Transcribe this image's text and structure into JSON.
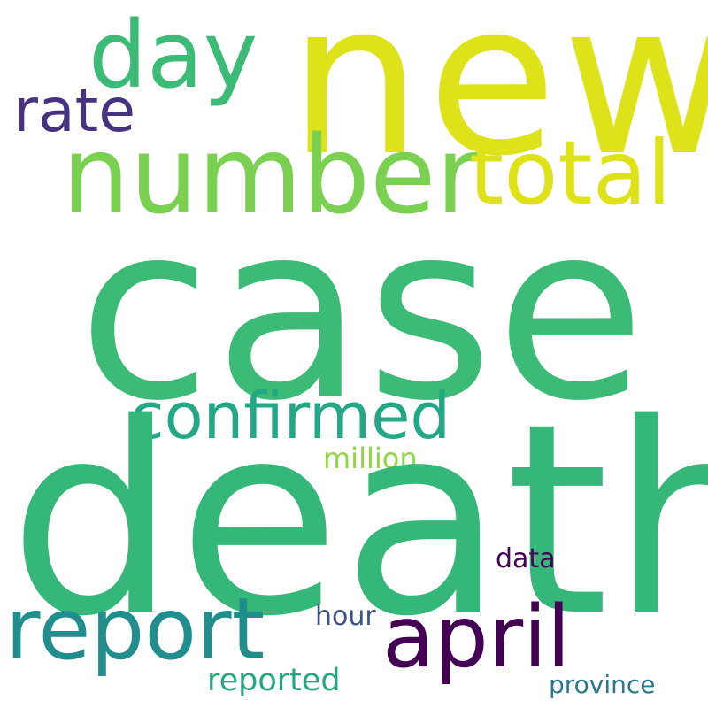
{
  "words": {
    "new": {
      "text": "new",
      "color": "#dde318"
    },
    "case": {
      "text": "case",
      "color": "#3bbb75"
    },
    "death": {
      "text": "death",
      "color": "#35b779"
    },
    "number": {
      "text": "number",
      "color": "#7ad151"
    },
    "day": {
      "text": "day",
      "color": "#3bbb75"
    },
    "total": {
      "text": "total",
      "color": "#dde318"
    },
    "rate": {
      "text": "rate",
      "color": "#46327e"
    },
    "confirmed": {
      "text": "confirmed",
      "color": "#22a884"
    },
    "report": {
      "text": "report",
      "color": "#228d8d"
    },
    "april": {
      "text": "april",
      "color": "#440154"
    },
    "million": {
      "text": "million",
      "color": "#8fd744"
    },
    "data": {
      "text": "data",
      "color": "#440154"
    },
    "hour": {
      "text": "hour",
      "color": "#3b528b"
    },
    "reported": {
      "text": "reported",
      "color": "#22a884"
    },
    "province": {
      "text": "province",
      "color": "#2a788e"
    }
  }
}
